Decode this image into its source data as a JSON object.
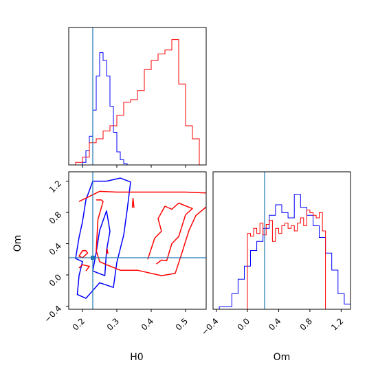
{
  "colors": {
    "blue": "#0000ff",
    "red": "#ff0000",
    "truth": "#1f77b4",
    "frame": "#000000"
  },
  "chart_data": {
    "type": "corner",
    "parameters": [
      "H0",
      "Om"
    ],
    "truth": {
      "H0": 0.23,
      "Om": 0.22
    },
    "axes": {
      "H0": {
        "label": "H0",
        "range": [
          0.16,
          0.56
        ],
        "ticks": [
          "0.2",
          "0.3",
          "0.4",
          "0.5"
        ],
        "tick_values": [
          0.2,
          0.3,
          0.4,
          0.5
        ]
      },
      "Om": {
        "label": "Om",
        "range": [
          -0.44,
          1.32
        ],
        "ticks": [
          "−0.4",
          "0.0",
          "0.4",
          "0.8",
          "1.2"
        ],
        "tick_values": [
          -0.4,
          0.0,
          0.4,
          0.8,
          1.2
        ]
      }
    },
    "grid": false,
    "legend": "none",
    "series": [
      {
        "color": "blue",
        "H0_hist": {
          "edges": [
            0.16,
            0.17,
            0.18,
            0.19,
            0.2,
            0.21,
            0.22,
            0.23,
            0.24,
            0.25,
            0.26,
            0.27,
            0.28,
            0.29,
            0.3,
            0.31,
            0.32,
            0.33,
            0.34,
            0.35,
            0.36
          ],
          "counts": [
            0,
            0,
            0,
            0,
            0.02,
            0.11,
            0.22,
            0.42,
            0.68,
            0.86,
            0.8,
            0.68,
            0.45,
            0.25,
            0.1,
            0.04,
            0.01,
            0.0,
            0.0,
            0.0
          ]
        },
        "Om_hist": {
          "edges": [
            -0.44,
            -0.36,
            -0.28,
            -0.2,
            -0.12,
            -0.04,
            0.04,
            0.12,
            0.2,
            0.28,
            0.36,
            0.44,
            0.52,
            0.6,
            0.68,
            0.76,
            0.84,
            0.92,
            1.0,
            1.08,
            1.16,
            1.24,
            1.32
          ],
          "counts": [
            0,
            0.02,
            0.02,
            0.12,
            0.23,
            0.33,
            0.45,
            0.52,
            0.62,
            0.72,
            0.8,
            0.74,
            0.7,
            0.88,
            0.78,
            0.72,
            0.64,
            0.55,
            0.43,
            0.3,
            0.12,
            0.04
          ]
        },
        "contours": [
          [
            [
              0.18,
              0.21
            ],
            [
              0.19,
              0.48
            ],
            [
              0.2,
              0.68
            ],
            [
              0.21,
              0.96
            ],
            [
              0.23,
              1.2
            ],
            [
              0.27,
              1.2
            ],
            [
              0.31,
              1.24
            ],
            [
              0.34,
              1.19
            ],
            [
              0.33,
              0.83
            ],
            [
              0.32,
              0.51
            ],
            [
              0.3,
              0.16
            ],
            [
              0.29,
              -0.16
            ],
            [
              0.25,
              -0.1
            ],
            [
              0.21,
              -0.3
            ],
            [
              0.185,
              -0.25
            ],
            [
              0.19,
              -0.01
            ],
            [
              0.2,
              0.17
            ]
          ],
          [
            [
              0.23,
              0.05
            ],
            [
              0.24,
              0.29
            ],
            [
              0.25,
              0.57
            ],
            [
              0.27,
              0.82
            ],
            [
              0.28,
              0.56
            ],
            [
              0.27,
              0.31
            ],
            [
              0.265,
              -0.01
            ]
          ]
        ]
      },
      {
        "color": "red",
        "H0_hist": {
          "edges": [
            0.16,
            0.18,
            0.2,
            0.22,
            0.24,
            0.26,
            0.28,
            0.3,
            0.32,
            0.34,
            0.36,
            0.38,
            0.4,
            0.42,
            0.44,
            0.46,
            0.48,
            0.5,
            0.52,
            0.54,
            0.56
          ],
          "counts": [
            0,
            0.02,
            0.06,
            0.17,
            0.2,
            0.26,
            0.3,
            0.38,
            0.48,
            0.5,
            0.57,
            0.73,
            0.8,
            0.85,
            0.88,
            0.96,
            0.62,
            0.3,
            0.2,
            0.0
          ]
        },
        "Om_hist": {
          "edges": [
            0.0,
            0.04,
            0.08,
            0.12,
            0.16,
            0.2,
            0.24,
            0.28,
            0.32,
            0.36,
            0.4,
            0.44,
            0.48,
            0.52,
            0.56,
            0.6,
            0.64,
            0.68,
            0.72,
            0.76,
            0.8,
            0.84,
            0.88,
            0.92,
            0.96,
            1.0
          ],
          "counts": [
            0.58,
            0.56,
            0.62,
            0.58,
            0.66,
            0.57,
            0.65,
            0.68,
            0.52,
            0.62,
            0.58,
            0.64,
            0.66,
            0.62,
            0.64,
            0.6,
            0.66,
            0.7,
            0.64,
            0.76,
            0.74,
            0.72,
            0.7,
            0.74,
            0.6
          ]
        },
        "contours": [
          [
            [
              0.19,
              0.24
            ],
            [
              0.2,
              0.31
            ],
            [
              0.21,
              0.31
            ],
            [
              0.215,
              0.28
            ],
            [
              0.2,
              0.22
            ]
          ],
          [
            [
              0.19,
              0.09
            ],
            [
              0.2,
              0.13
            ],
            [
              0.22,
              0.11
            ],
            [
              0.21,
              0.05
            ]
          ],
          [
            [
              0.19,
              0.94
            ],
            [
              0.25,
              1.07
            ],
            [
              0.3,
              1.06
            ],
            [
              0.4,
              1.06
            ],
            [
              0.5,
              1.06
            ],
            [
              0.56,
              1.05
            ]
          ],
          [
            [
              0.56,
              0.87
            ],
            [
              0.53,
              0.76
            ],
            [
              0.51,
              0.57
            ],
            [
              0.49,
              0.29
            ],
            [
              0.47,
              0.02
            ],
            [
              0.43,
              -0.01
            ],
            [
              0.36,
              0.06
            ],
            [
              0.31,
              0.06
            ],
            [
              0.27,
              0.13
            ],
            [
              0.25,
              0.17
            ],
            [
              0.24,
              0.31
            ],
            [
              0.245,
              0.71
            ],
            [
              0.26,
              0.94
            ],
            [
              0.255,
              0.96
            ],
            [
              0.24,
              0.96
            ]
          ],
          [
            [
              0.39,
              0.2
            ],
            [
              0.41,
              0.47
            ],
            [
              0.43,
              0.56
            ],
            [
              0.42,
              0.72
            ],
            [
              0.44,
              0.88
            ],
            [
              0.46,
              0.84
            ],
            [
              0.48,
              0.92
            ],
            [
              0.52,
              0.85
            ],
            [
              0.5,
              0.77
            ],
            [
              0.48,
              0.49
            ],
            [
              0.46,
              0.4
            ],
            [
              0.445,
              0.18
            ],
            [
              0.43,
              0.19
            ],
            [
              0.415,
              0.14
            ]
          ],
          [
            [
              0.27,
              0.27
            ],
            [
              0.272,
              0.33
            ],
            [
              0.274,
              0.27
            ]
          ],
          [
            [
              0.345,
              0.86
            ],
            [
              0.347,
              0.98
            ],
            [
              0.35,
              0.86
            ]
          ]
        ]
      }
    ]
  }
}
